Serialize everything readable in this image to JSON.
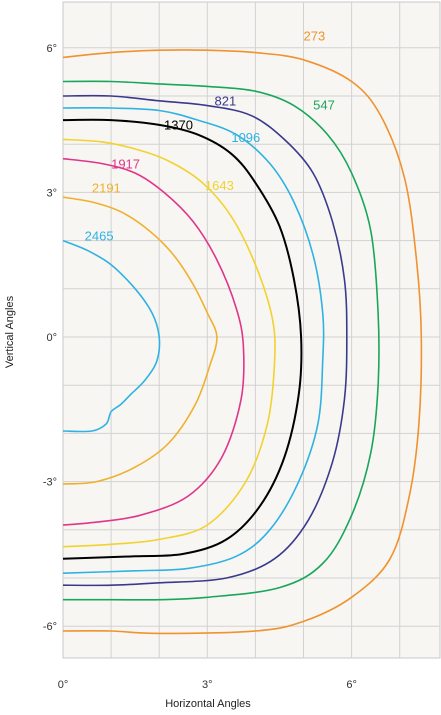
{
  "chart_data": {
    "type": "contour",
    "title": "",
    "xlabel": "Horizontal Angles",
    "ylabel": "Vertical Angles",
    "xlim": [
      0,
      7.5
    ],
    "ylim": [
      -7,
      7
    ],
    "grid": true,
    "x_ticks": [
      0,
      3,
      6
    ],
    "x_tick_labels": [
      "0°",
      "3°",
      "6°"
    ],
    "y_ticks": [
      6,
      3,
      0,
      -3,
      -6
    ],
    "y_tick_labels": [
      "6°",
      "3°",
      "0°",
      "-3°",
      "-6°"
    ],
    "series": [
      {
        "name": "273",
        "color": "#F0922E",
        "points": [
          [
            0,
            5.8
          ],
          [
            1,
            5.9
          ],
          [
            2,
            5.95
          ],
          [
            3,
            5.95
          ],
          [
            4,
            5.9
          ],
          [
            5,
            5.75
          ],
          [
            6,
            5.3
          ],
          [
            6.6,
            4.6
          ],
          [
            7.1,
            3.3
          ],
          [
            7.35,
            1.6
          ],
          [
            7.45,
            0
          ],
          [
            7.4,
            -1.8
          ],
          [
            7.2,
            -3.3
          ],
          [
            6.8,
            -4.6
          ],
          [
            6.0,
            -5.4
          ],
          [
            5,
            -5.9
          ],
          [
            4,
            -6.1
          ],
          [
            2,
            -6.15
          ],
          [
            1,
            -6.1
          ],
          [
            0,
            -6.1
          ]
        ],
        "label_text": "273",
        "label_pos": [
          5.0,
          6.15
        ],
        "label_color": "#F0922E"
      },
      {
        "name": "547",
        "color": "#1AA65A",
        "points": [
          [
            0,
            5.3
          ],
          [
            1,
            5.3
          ],
          [
            2,
            5.25
          ],
          [
            3,
            5.2
          ],
          [
            4,
            5.1
          ],
          [
            4.8,
            4.8
          ],
          [
            5.5,
            4.2
          ],
          [
            6.0,
            3.4
          ],
          [
            6.4,
            2.2
          ],
          [
            6.55,
            0.5
          ],
          [
            6.55,
            -1
          ],
          [
            6.4,
            -2.4
          ],
          [
            6.0,
            -3.7
          ],
          [
            5.4,
            -4.7
          ],
          [
            4.5,
            -5.2
          ],
          [
            3,
            -5.4
          ],
          [
            2,
            -5.45
          ],
          [
            1,
            -5.45
          ],
          [
            0,
            -5.45
          ]
        ],
        "label_text": "547",
        "label_pos": [
          5.2,
          4.72
        ],
        "label_color": "#1AA65A"
      },
      {
        "name": "821",
        "color": "#3A3A8C",
        "points": [
          [
            0,
            5.0
          ],
          [
            1,
            5.0
          ],
          [
            2,
            4.9
          ],
          [
            3,
            4.8
          ],
          [
            3.9,
            4.6
          ],
          [
            4.6,
            4.1
          ],
          [
            5.2,
            3.4
          ],
          [
            5.6,
            2.4
          ],
          [
            5.85,
            1.2
          ],
          [
            5.9,
            0
          ],
          [
            5.85,
            -1.3
          ],
          [
            5.6,
            -2.6
          ],
          [
            5.1,
            -3.8
          ],
          [
            4.4,
            -4.6
          ],
          [
            3.4,
            -5.0
          ],
          [
            2,
            -5.1
          ],
          [
            1,
            -5.15
          ],
          [
            0,
            -5.15
          ]
        ],
        "label_text": "821",
        "label_pos": [
          3.15,
          4.8
        ],
        "label_color": "#3A3A8C"
      },
      {
        "name": "1096",
        "color": "#2FB2E3",
        "points": [
          [
            0,
            4.75
          ],
          [
            1,
            4.75
          ],
          [
            2,
            4.7
          ],
          [
            2.8,
            4.5
          ],
          [
            3.6,
            4.2
          ],
          [
            4.3,
            3.6
          ],
          [
            4.8,
            2.8
          ],
          [
            5.2,
            1.7
          ],
          [
            5.4,
            0.5
          ],
          [
            5.4,
            -0.5
          ],
          [
            5.3,
            -1.8
          ],
          [
            4.9,
            -3.0
          ],
          [
            4.3,
            -4.0
          ],
          [
            3.6,
            -4.55
          ],
          [
            2.6,
            -4.8
          ],
          [
            1.5,
            -4.85
          ],
          [
            0,
            -4.9
          ]
        ],
        "label_text": "1096",
        "label_pos": [
          3.5,
          4.05
        ],
        "label_color": "#2FB2E3"
      },
      {
        "name": "1370",
        "color": "#000000",
        "points": [
          [
            0,
            4.5
          ],
          [
            1,
            4.5
          ],
          [
            2,
            4.4
          ],
          [
            2.8,
            4.2
          ],
          [
            3.5,
            3.8
          ],
          [
            4.0,
            3.2
          ],
          [
            4.5,
            2.3
          ],
          [
            4.8,
            1.2
          ],
          [
            4.95,
            0
          ],
          [
            4.9,
            -1.2
          ],
          [
            4.6,
            -2.5
          ],
          [
            4.1,
            -3.5
          ],
          [
            3.4,
            -4.2
          ],
          [
            2.5,
            -4.5
          ],
          [
            1.5,
            -4.55
          ],
          [
            0,
            -4.6
          ]
        ],
        "label_text": "1370",
        "label_pos": [
          2.1,
          4.3
        ],
        "label_color": "#000000"
      },
      {
        "name": "1643",
        "color": "#F2D22E",
        "points": [
          [
            0,
            4.1
          ],
          [
            0.8,
            4.05
          ],
          [
            1.5,
            3.9
          ],
          [
            2.2,
            3.65
          ],
          [
            2.9,
            3.2
          ],
          [
            3.5,
            2.5
          ],
          [
            4.0,
            1.5
          ],
          [
            4.35,
            0.4
          ],
          [
            4.4,
            -0.5
          ],
          [
            4.25,
            -1.8
          ],
          [
            3.8,
            -3.0
          ],
          [
            3.0,
            -3.9
          ],
          [
            2.0,
            -4.2
          ],
          [
            1,
            -4.3
          ],
          [
            0,
            -4.35
          ]
        ],
        "label_text": "1643",
        "label_pos": [
          2.95,
          3.05
        ],
        "label_color": "#F2D22E"
      },
      {
        "name": "1917",
        "color": "#E0368A",
        "points": [
          [
            0,
            3.7
          ],
          [
            0.8,
            3.6
          ],
          [
            1.5,
            3.4
          ],
          [
            2.1,
            3.0
          ],
          [
            2.7,
            2.4
          ],
          [
            3.2,
            1.6
          ],
          [
            3.6,
            0.6
          ],
          [
            3.75,
            -0.2
          ],
          [
            3.7,
            -1.3
          ],
          [
            3.3,
            -2.5
          ],
          [
            2.6,
            -3.3
          ],
          [
            1.6,
            -3.7
          ],
          [
            0.6,
            -3.85
          ],
          [
            0,
            -3.9
          ]
        ],
        "label_text": "1917",
        "label_pos": [
          1.0,
          3.5
        ],
        "label_color": "#E0368A"
      },
      {
        "name": "2191",
        "color": "#F0B02E",
        "points": [
          [
            0,
            2.9
          ],
          [
            0.6,
            2.8
          ],
          [
            1.2,
            2.6
          ],
          [
            1.8,
            2.2
          ],
          [
            2.3,
            1.7
          ],
          [
            2.7,
            1.1
          ],
          [
            3.0,
            0.5
          ],
          [
            3.2,
            0
          ],
          [
            3.05,
            -0.6
          ],
          [
            2.75,
            -1.4
          ],
          [
            2.2,
            -2.2
          ],
          [
            1.5,
            -2.7
          ],
          [
            0.7,
            -3.0
          ],
          [
            0,
            -3.05
          ]
        ],
        "label_text": "2191",
        "label_pos": [
          0.6,
          3.0
        ],
        "label_color": "#F0B02E"
      },
      {
        "name": "2465",
        "color": "#2FB2E3",
        "points": [
          [
            0,
            2.0
          ],
          [
            0.5,
            1.8
          ],
          [
            1.0,
            1.5
          ],
          [
            1.5,
            1.0
          ],
          [
            1.85,
            0.5
          ],
          [
            2.0,
            0
          ],
          [
            1.95,
            -0.5
          ],
          [
            1.7,
            -0.9
          ],
          [
            1.4,
            -1.2
          ],
          [
            1.2,
            -1.4
          ],
          [
            1.0,
            -1.55
          ],
          [
            0.9,
            -1.8
          ],
          [
            0.6,
            -1.95
          ],
          [
            0,
            -1.95
          ]
        ],
        "label_text": "2465",
        "label_pos": [
          0.45,
          2.0
        ],
        "label_color": "#2FB2E3"
      }
    ]
  }
}
